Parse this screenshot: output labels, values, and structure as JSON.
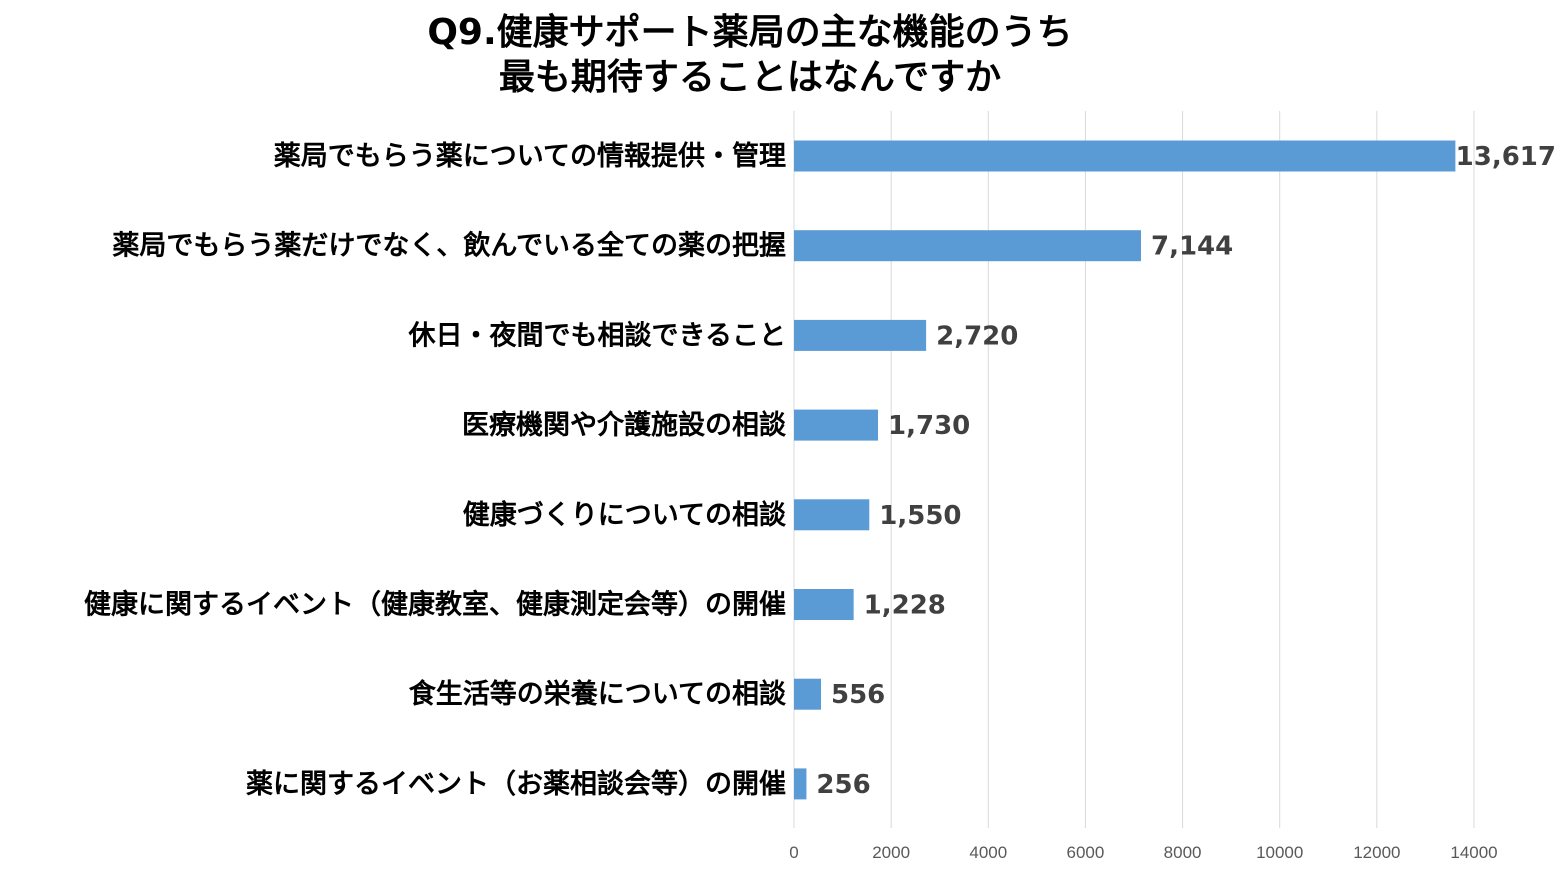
{
  "chart_data": {
    "type": "bar",
    "orientation": "horizontal",
    "title_lines": [
      "Q9.健康サポート薬局の主な機能のうち",
      "最も期待することはなんですか"
    ],
    "categories": [
      "薬局でもらう薬についての情報提供・管理",
      "薬局でもらう薬だけでなく、飲んでいる全ての薬の把握",
      "休日・夜間でも相談できること",
      "医療機関や介護施設の相談",
      "健康づくりについての相談",
      "健康に関するイベント（健康教室、健康測定会等）の開催",
      "食生活等の栄養についての相談",
      "薬に関するイベント（お薬相談会等）の開催"
    ],
    "values": [
      13617,
      7144,
      2720,
      1730,
      1550,
      1228,
      556,
      256
    ],
    "data_labels": [
      "13,617",
      "7,144",
      "2,720",
      "1,730",
      "1,550",
      "1,228",
      "556",
      "256"
    ],
    "xlim": [
      0,
      14000
    ],
    "x_ticks": [
      0,
      2000,
      4000,
      6000,
      8000,
      10000,
      12000,
      14000
    ],
    "x_tick_labels": [
      "0",
      "2000",
      "4000",
      "6000",
      "8000",
      "10000",
      "12000",
      "14000"
    ],
    "grid": "vertical",
    "bar_color": "#5B9BD5",
    "gridline_color": "#D9D9D9",
    "legend": "none"
  }
}
